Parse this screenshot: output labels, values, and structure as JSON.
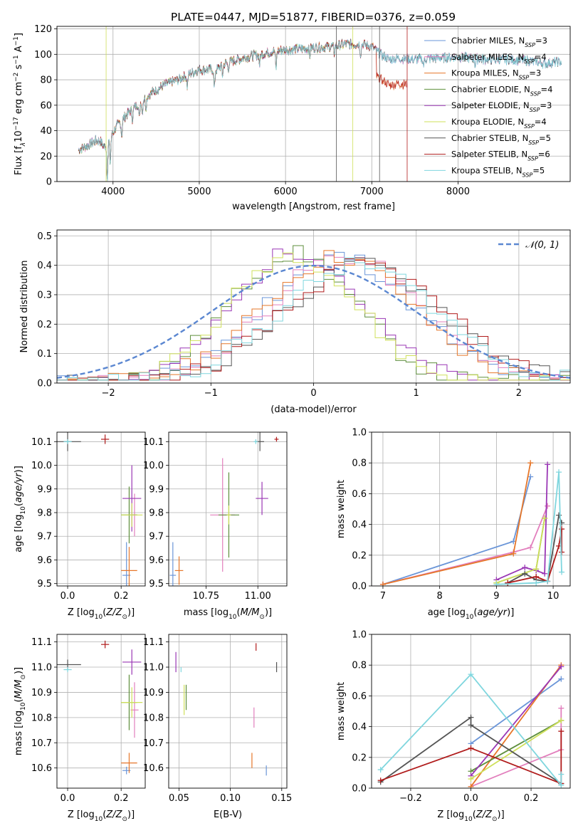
{
  "title": "PLATE=0447, MJD=51877, FIBERID=0376, z=0.059",
  "colors": {
    "chabrier_miles": "#6a95d8",
    "salpeter_miles": "#e27fbd",
    "kroupa_miles": "#e6772a",
    "chabrier_elodie": "#5e8f3c",
    "salpeter_elodie": "#9a37b5",
    "kroupa_elodie": "#cfe05a",
    "chabrier_stelib": "#555555",
    "salpeter_stelib": "#b01b1b",
    "kroupa_stelib": "#7fd6de",
    "normal": "#5b87d1",
    "grid": "#b0b0b0"
  },
  "chart_data": [
    {
      "id": "spectrum",
      "type": "line",
      "xlabel": "wavelength [Angstrom, rest frame]",
      "ylabel_parts": [
        "Flux [f",
        "λ",
        "10",
        "−17",
        " erg cm",
        "−2",
        " s",
        "−1",
        " A",
        "−1",
        "]"
      ],
      "xlim": [
        3350,
        9300
      ],
      "ylim": [
        0,
        122
      ],
      "xticks": [
        4000,
        5000,
        6000,
        7000,
        8000
      ],
      "yticks": [
        0,
        20,
        40,
        60,
        80,
        100,
        120
      ],
      "continuum": [
        [
          3600,
          25
        ],
        [
          3700,
          28
        ],
        [
          3800,
          32
        ],
        [
          3850,
          32
        ],
        [
          3900,
          27
        ],
        [
          3950,
          33
        ],
        [
          4050,
          44
        ],
        [
          4150,
          52
        ],
        [
          4300,
          62
        ],
        [
          4450,
          70
        ],
        [
          4600,
          76
        ],
        [
          4750,
          80
        ],
        [
          4900,
          85
        ],
        [
          5000,
          88
        ],
        [
          5200,
          88
        ],
        [
          5300,
          93
        ],
        [
          5500,
          97
        ],
        [
          5700,
          100
        ],
        [
          5900,
          103
        ],
        [
          6100,
          104
        ],
        [
          6300,
          105
        ],
        [
          6500,
          106
        ],
        [
          6700,
          108
        ],
        [
          6900,
          108
        ],
        [
          7000,
          106
        ],
        [
          7100,
          100
        ],
        [
          7200,
          96
        ],
        [
          7300,
          97
        ],
        [
          7500,
          96
        ],
        [
          7700,
          97
        ],
        [
          8000,
          98
        ],
        [
          8300,
          96
        ],
        [
          8600,
          96
        ],
        [
          8800,
          95
        ],
        [
          9000,
          93
        ],
        [
          9200,
          94
        ]
      ],
      "absorption": [
        [
          3934,
          28
        ],
        [
          3968,
          20
        ],
        [
          4101,
          12
        ],
        [
          4226,
          8
        ],
        [
          4305,
          13
        ],
        [
          4340,
          10
        ],
        [
          4383,
          8
        ],
        [
          4861,
          9
        ],
        [
          5175,
          15
        ],
        [
          5270,
          8
        ],
        [
          5335,
          6
        ],
        [
          5700,
          8
        ],
        [
          5890,
          14
        ],
        [
          6280,
          6
        ],
        [
          6563,
          6
        ],
        [
          6870,
          8
        ],
        [
          7600,
          6
        ],
        [
          8200,
          5
        ]
      ],
      "cut_series_note": "",
      "legend": [
        {
          "name": "Chabrier MILES, N",
          "sub": "SSP",
          "eq": "=3",
          "color_key": "chabrier_miles"
        },
        {
          "name": "Salpeter MILES, N",
          "sub": "SSP",
          "eq": "=4",
          "color_key": "salpeter_miles"
        },
        {
          "name": "Kroupa MILES, N",
          "sub": "SSP",
          "eq": "=3",
          "color_key": "kroupa_miles"
        },
        {
          "name": "Chabrier ELODIE, N",
          "sub": "SSP",
          "eq": "=4",
          "color_key": "chabrier_elodie"
        },
        {
          "name": "Salpeter ELODIE, N",
          "sub": "SSP",
          "eq": "=3",
          "color_key": "salpeter_elodie"
        },
        {
          "name": "Kroupa ELODIE, N",
          "sub": "SSP",
          "eq": "=4",
          "color_key": "kroupa_elodie"
        },
        {
          "name": "Chabrier STELIB, N",
          "sub": "SSP",
          "eq": "=5",
          "color_key": "chabrier_stelib"
        },
        {
          "name": "Salpeter STELIB, N",
          "sub": "SSP",
          "eq": "=6",
          "color_key": "salpeter_stelib"
        },
        {
          "name": "Kroupa STELIB, N",
          "sub": "SSP",
          "eq": "=5",
          "color_key": "kroupa_stelib"
        }
      ]
    },
    {
      "id": "residuals",
      "type": "histogram",
      "xlabel": "(data-model)/error",
      "ylabel": "Normed distribution",
      "xlim": [
        -2.5,
        2.5
      ],
      "ylim": [
        0,
        0.52
      ],
      "xticks": [
        -2,
        -1,
        0,
        1,
        2
      ],
      "yticks": [
        0.0,
        0.1,
        0.2,
        0.3,
        0.4,
        0.5
      ],
      "bin_width": 0.1,
      "normal_legend": "𝒩(0, 1)",
      "series_peaks": [
        {
          "color_key": "chabrier_miles",
          "center": 0.25,
          "width": 0.95,
          "peak": 0.43
        },
        {
          "color_key": "salpeter_miles",
          "center": 0.3,
          "width": 0.95,
          "peak": 0.43
        },
        {
          "color_key": "kroupa_miles",
          "center": 0.25,
          "width": 0.95,
          "peak": 0.43
        },
        {
          "color_key": "chabrier_elodie",
          "center": -0.2,
          "width": 0.8,
          "peak": 0.44
        },
        {
          "color_key": "salpeter_elodie",
          "center": -0.15,
          "width": 0.8,
          "peak": 0.45
        },
        {
          "color_key": "kroupa_elodie",
          "center": -0.2,
          "width": 0.8,
          "peak": 0.44
        },
        {
          "color_key": "chabrier_stelib",
          "center": 0.5,
          "width": 1.0,
          "peak": 0.4
        },
        {
          "color_key": "salpeter_stelib",
          "center": 0.5,
          "width": 1.0,
          "peak": 0.4
        },
        {
          "color_key": "kroupa_stelib",
          "center": 0.45,
          "width": 1.0,
          "peak": 0.4
        }
      ]
    },
    {
      "id": "age_vs_Z",
      "type": "errorbar",
      "xlabel": "Z [log10(Z/Z⊙)]",
      "ylabel": "age  [log10(age/yr)]",
      "xlim": [
        -0.04,
        0.29
      ],
      "ylim": [
        9.49,
        10.14
      ],
      "xticks": [
        0.0,
        0.2
      ],
      "yticks": [
        9.5,
        9.6,
        9.7,
        9.8,
        9.9,
        10.0,
        10.1
      ],
      "points": [
        {
          "color_key": "chabrier_miles",
          "x": 0.22,
          "xe": 0.015,
          "y": 9.535,
          "ye": 0.14
        },
        {
          "color_key": "salpeter_miles",
          "x": 0.25,
          "xe": 0.01,
          "y": 9.79,
          "ye": 0.09
        },
        {
          "color_key": "kroupa_miles",
          "x": 0.23,
          "xe": 0.03,
          "y": 9.555,
          "ye": 0.1
        },
        {
          "color_key": "chabrier_elodie",
          "x": 0.23,
          "xe": 0.03,
          "y": 9.79,
          "ye": 0.12
        },
        {
          "color_key": "salpeter_elodie",
          "x": 0.24,
          "xe": 0.035,
          "y": 9.86,
          "ye": 0.14
        },
        {
          "color_key": "kroupa_elodie",
          "x": 0.24,
          "xe": 0.04,
          "y": 9.79,
          "ye": 0.05
        },
        {
          "color_key": "chabrier_stelib",
          "x": 0.0,
          "xe": 0.05,
          "y": 10.1,
          "ye": 0.04
        },
        {
          "color_key": "salpeter_stelib",
          "x": 0.14,
          "xe": 0.015,
          "y": 10.11,
          "ye": 0.02
        },
        {
          "color_key": "kroupa_stelib",
          "x": 0.0,
          "xe": 0.015,
          "y": 10.1,
          "ye": 0.01
        }
      ]
    },
    {
      "id": "age_vs_mass",
      "type": "errorbar",
      "xlabel": "mass [log10(M/M⊙)]",
      "ylabel": "",
      "xlim": [
        10.57,
        11.14
      ],
      "ylim": [
        9.49,
        10.14
      ],
      "xticks": [
        10.75,
        11.0
      ],
      "tick_labels": [
        "10.75",
        "11.00"
      ],
      "yticks": [
        9.5,
        9.6,
        9.7,
        9.8,
        9.9,
        10.0,
        10.1
      ],
      "points": [
        {
          "color_key": "chabrier_miles",
          "x": 10.59,
          "xe": 0.015,
          "y": 9.535,
          "ye": 0.14
        },
        {
          "color_key": "salpeter_miles",
          "x": 10.83,
          "xe": 0.06,
          "y": 9.79,
          "ye": 0.24
        },
        {
          "color_key": "kroupa_miles",
          "x": 10.62,
          "xe": 0.02,
          "y": 9.555,
          "ye": 0.06
        },
        {
          "color_key": "chabrier_elodie",
          "x": 10.86,
          "xe": 0.05,
          "y": 9.79,
          "ye": 0.18
        },
        {
          "color_key": "salpeter_elodie",
          "x": 11.02,
          "xe": 0.03,
          "y": 9.86,
          "ye": 0.07
        },
        {
          "color_key": "kroupa_elodie",
          "x": 10.86,
          "xe": 0.01,
          "y": 9.79,
          "ye": 0.04
        },
        {
          "color_key": "chabrier_stelib",
          "x": 11.01,
          "xe": 0.02,
          "y": 10.1,
          "ye": 0.04
        },
        {
          "color_key": "salpeter_stelib",
          "x": 11.09,
          "xe": 0.01,
          "y": 10.11,
          "ye": 0.01
        },
        {
          "color_key": "kroupa_stelib",
          "x": 10.99,
          "xe": 0.01,
          "y": 10.1,
          "ye": 0.01
        }
      ]
    },
    {
      "id": "weight_vs_age",
      "type": "line",
      "xlabel": "age  [log10(age/yr)]",
      "ylabel": "mass weight",
      "xlim": [
        6.8,
        10.3
      ],
      "ylim": [
        0,
        1.0
      ],
      "xticks": [
        7,
        8,
        9,
        10
      ],
      "yticks": [
        0.0,
        0.2,
        0.4,
        0.6,
        0.8,
        1.0
      ],
      "series": [
        {
          "color_key": "chabrier_miles",
          "x": [
            7.0,
            9.3,
            9.6
          ],
          "y": [
            0.01,
            0.29,
            0.71
          ]
        },
        {
          "color_key": "salpeter_miles",
          "x": [
            7.0,
            9.3,
            9.6,
            9.9
          ],
          "y": [
            0.01,
            0.22,
            0.25,
            0.52
          ]
        },
        {
          "color_key": "kroupa_miles",
          "x": [
            7.0,
            9.3,
            9.6
          ],
          "y": [
            0.01,
            0.21,
            0.8
          ]
        },
        {
          "color_key": "chabrier_elodie",
          "x": [
            9.0,
            9.7,
            9.85
          ],
          "y": [
            0.02,
            0.11,
            0.44
          ]
        },
        {
          "color_key": "salpeter_elodie",
          "x": [
            9.0,
            9.5,
            9.7,
            9.85,
            9.9
          ],
          "y": [
            0.04,
            0.12,
            0.1,
            0.08,
            0.79
          ]
        },
        {
          "color_key": "kroupa_elodie",
          "x": [
            9.0,
            9.7,
            9.85
          ],
          "y": [
            0.02,
            0.11,
            0.44
          ]
        },
        {
          "color_key": "chabrier_stelib",
          "x": [
            9.2,
            9.5,
            9.7,
            9.9,
            10.1,
            10.15
          ],
          "y": [
            0.02,
            0.08,
            0.04,
            0.03,
            0.46,
            0.41
          ]
        },
        {
          "color_key": "salpeter_stelib",
          "x": [
            9.2,
            9.7,
            9.9,
            10.1,
            10.15,
            10.15
          ],
          "y": [
            0.02,
            0.06,
            0.03,
            0.26,
            0.37,
            0.22
          ]
        },
        {
          "color_key": "kroupa_stelib",
          "x": [
            9.0,
            9.7,
            9.9,
            10.1,
            10.15
          ],
          "y": [
            0.01,
            0.02,
            0.03,
            0.74,
            0.09
          ]
        }
      ]
    },
    {
      "id": "mass_vs_Z",
      "type": "errorbar",
      "xlabel": "Z [log10(Z/Z⊙)]",
      "ylabel": "mass [log10(M/M⊙)]",
      "xlim": [
        -0.04,
        0.29
      ],
      "ylim": [
        10.52,
        11.13
      ],
      "xticks": [
        0.0,
        0.2
      ],
      "yticks": [
        10.6,
        10.7,
        10.8,
        10.9,
        11.0,
        11.1
      ],
      "points": [
        {
          "color_key": "chabrier_miles",
          "x": 0.22,
          "xe": 0.015,
          "y": 10.59,
          "ye": 0.015
        },
        {
          "color_key": "salpeter_miles",
          "x": 0.25,
          "xe": 0.015,
          "y": 10.83,
          "ye": 0.11
        },
        {
          "color_key": "kroupa_miles",
          "x": 0.23,
          "xe": 0.03,
          "y": 10.62,
          "ye": 0.04
        },
        {
          "color_key": "chabrier_elodie",
          "x": 0.23,
          "xe": 0.03,
          "y": 10.86,
          "ye": 0.11
        },
        {
          "color_key": "salpeter_elodie",
          "x": 0.24,
          "xe": 0.035,
          "y": 11.02,
          "ye": 0.05
        },
        {
          "color_key": "kroupa_elodie",
          "x": 0.24,
          "xe": 0.04,
          "y": 10.86,
          "ye": 0.06
        },
        {
          "color_key": "chabrier_stelib",
          "x": 0.0,
          "xe": 0.05,
          "y": 11.01,
          "ye": 0.02
        },
        {
          "color_key": "salpeter_stelib",
          "x": 0.14,
          "xe": 0.015,
          "y": 11.09,
          "ye": 0.015
        },
        {
          "color_key": "kroupa_stelib",
          "x": 0.0,
          "xe": 0.015,
          "y": 10.99,
          "ye": 0.01
        }
      ]
    },
    {
      "id": "mass_vs_ebv",
      "type": "errorbar",
      "xlabel": "E(B-V)",
      "ylabel": "",
      "xlim": [
        0.04,
        0.155
      ],
      "ylim": [
        10.52,
        11.13
      ],
      "xticks": [
        0.05,
        0.1,
        0.15
      ],
      "tick_labels": [
        "0.05",
        "0.10",
        "0.15"
      ],
      "yticks": [
        10.6,
        10.7,
        10.8,
        10.9,
        11.0,
        11.1
      ],
      "points": [
        {
          "color_key": "chabrier_miles",
          "x": 0.135,
          "xe": 0,
          "y": 10.59,
          "ye": 0.02
        },
        {
          "color_key": "salpeter_miles",
          "x": 0.123,
          "xe": 0,
          "y": 10.8,
          "ye": 0.04
        },
        {
          "color_key": "kroupa_miles",
          "x": 0.121,
          "xe": 0,
          "y": 10.63,
          "ye": 0.03
        },
        {
          "color_key": "chabrier_elodie",
          "x": 0.057,
          "xe": 0,
          "y": 10.88,
          "ye": 0.05
        },
        {
          "color_key": "salpeter_elodie",
          "x": 0.047,
          "xe": 0,
          "y": 11.02,
          "ye": 0.04
        },
        {
          "color_key": "kroupa_elodie",
          "x": 0.055,
          "xe": 0,
          "y": 10.87,
          "ye": 0.06
        },
        {
          "color_key": "chabrier_stelib",
          "x": 0.145,
          "xe": 0,
          "y": 11.0,
          "ye": 0.02
        },
        {
          "color_key": "salpeter_stelib",
          "x": 0.125,
          "xe": 0,
          "y": 11.08,
          "ye": 0.015
        },
        {
          "color_key": "kroupa_stelib",
          "x": 0.052,
          "xe": 0,
          "y": 10.99,
          "ye": 0.01
        }
      ]
    },
    {
      "id": "weight_vs_Z",
      "type": "line",
      "xlabel": "Z [log10(Z/Z⊙)]",
      "ylabel": "mass weight",
      "xlim": [
        -0.33,
        0.33
      ],
      "ylim": [
        0,
        1.0
      ],
      "xticks": [
        -0.2,
        0.0,
        0.2
      ],
      "tick_labels": [
        "−0.2",
        "0.0",
        "0.2"
      ],
      "yticks": [
        0.0,
        0.2,
        0.4,
        0.6,
        0.8,
        1.0
      ],
      "series": [
        {
          "color_key": "chabrier_miles",
          "x": [
            0.0,
            0.3
          ],
          "y": [
            0.29,
            0.71
          ]
        },
        {
          "color_key": "salpeter_miles",
          "x": [
            0.0,
            0.3,
            0.3
          ],
          "y": [
            0.01,
            0.25,
            0.52
          ]
        },
        {
          "color_key": "kroupa_miles",
          "x": [
            0.0,
            0.3
          ],
          "y": [
            0.01,
            0.8
          ]
        },
        {
          "color_key": "chabrier_elodie",
          "x": [
            0.0,
            0.3
          ],
          "y": [
            0.11,
            0.44
          ]
        },
        {
          "color_key": "salpeter_elodie",
          "x": [
            0.0,
            0.3
          ],
          "y": [
            0.08,
            0.79
          ]
        },
        {
          "color_key": "kroupa_elodie",
          "x": [
            0.0,
            0.3
          ],
          "y": [
            0.06,
            0.44
          ]
        },
        {
          "color_key": "chabrier_stelib",
          "x": [
            -0.3,
            0.0,
            0.0,
            0.3
          ],
          "y": [
            0.04,
            0.46,
            0.41,
            0.03
          ]
        },
        {
          "color_key": "salpeter_stelib",
          "x": [
            -0.3,
            0.0,
            0.3,
            0.3
          ],
          "y": [
            0.05,
            0.26,
            0.03,
            0.37
          ]
        },
        {
          "color_key": "kroupa_stelib",
          "x": [
            -0.3,
            0.0,
            0.3,
            0.3
          ],
          "y": [
            0.12,
            0.74,
            0.02,
            0.09
          ]
        }
      ]
    }
  ]
}
